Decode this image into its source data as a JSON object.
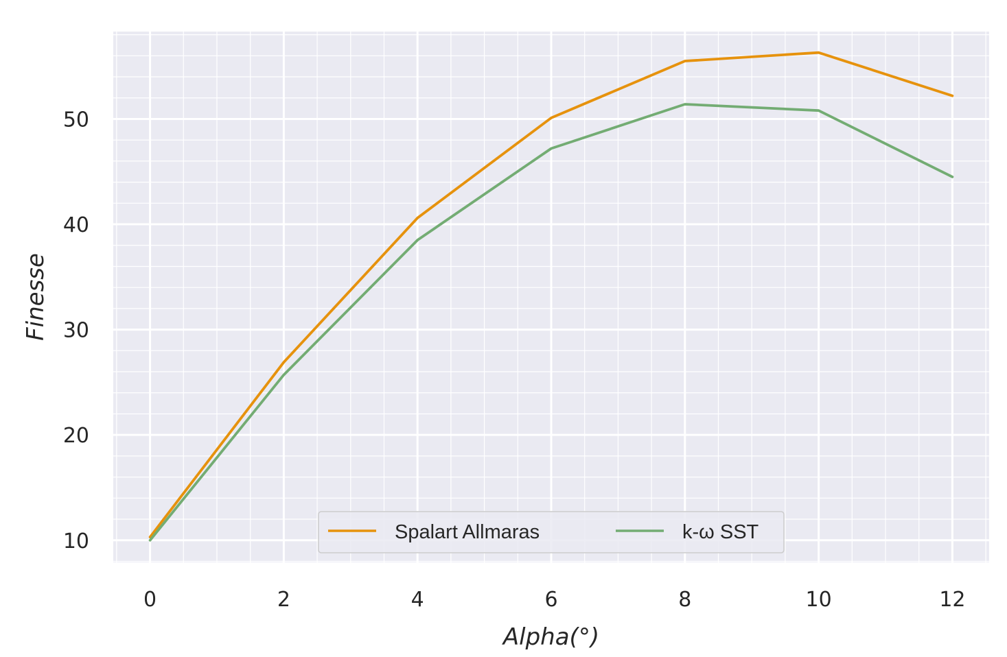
{
  "chart_data": {
    "type": "line",
    "title": "",
    "xlabel": "Alpha(°)",
    "ylabel": "Finesse",
    "x": [
      0,
      2,
      4,
      6,
      8,
      10,
      12
    ],
    "xlim": [
      -0.55,
      12.55
    ],
    "ylim": [
      7.9,
      58.3
    ],
    "xticks": [
      0,
      2,
      4,
      6,
      8,
      10,
      12
    ],
    "yticks": [
      10,
      20,
      30,
      40,
      50
    ],
    "grid": true,
    "minor_grid": true,
    "legend_position": "bottom-center",
    "series": [
      {
        "name": "Spalart Allmaras",
        "color": "#e6920d",
        "values": [
          10.3,
          26.9,
          40.6,
          50.1,
          55.5,
          56.3,
          52.2
        ]
      },
      {
        "name": "k-ω SST",
        "color": "#73ac73",
        "values": [
          10.0,
          25.7,
          38.5,
          47.2,
          51.4,
          50.8,
          44.5
        ]
      }
    ],
    "colors": {
      "plot_background": "#eaeaf2",
      "grid": "#ffffff",
      "text": "#262626"
    }
  }
}
